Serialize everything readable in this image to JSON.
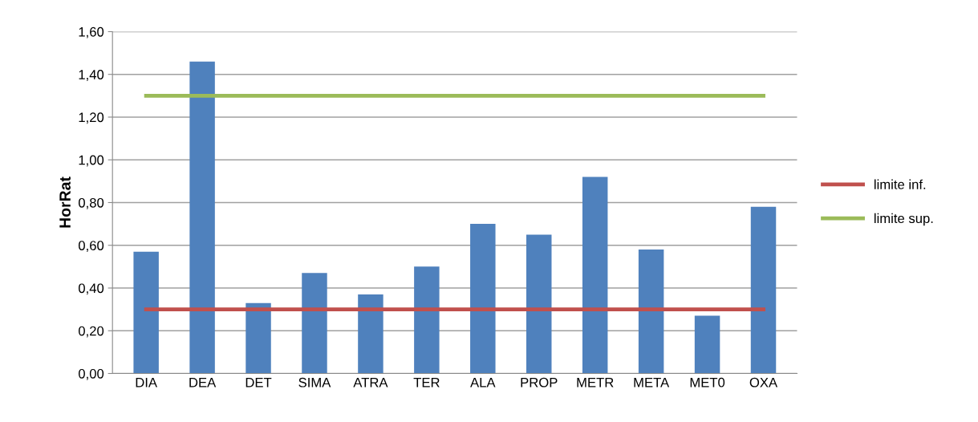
{
  "chart_data": {
    "type": "bar",
    "ylabel": "HorRat",
    "categories": [
      "DIA",
      "DEA",
      "DET",
      "SIMA",
      "ATRA",
      "TER",
      "ALA",
      "PROP",
      "METR",
      "META",
      "MET0",
      "OXA"
    ],
    "series": [
      {
        "color": "#4f81bd",
        "values": [
          0.57,
          1.46,
          0.33,
          0.47,
          0.37,
          0.5,
          0.7,
          0.65,
          0.92,
          0.58,
          0.27,
          0.78
        ]
      },
      {
        "type": "line",
        "name": "limite inf.",
        "color": "#c0504d",
        "values": [
          0.3,
          0.3,
          0.3,
          0.3,
          0.3,
          0.3,
          0.3,
          0.3,
          0.3,
          0.3,
          0.3,
          0.3
        ]
      },
      {
        "type": "line",
        "name": "limite sup.",
        "color": "#9bbb59",
        "values": [
          1.3,
          1.3,
          1.3,
          1.3,
          1.3,
          1.3,
          1.3,
          1.3,
          1.3,
          1.3,
          1.3,
          1.3
        ]
      }
    ],
    "ylim": [
      0,
      1.6
    ],
    "yticks": [
      {
        "value": 0,
        "label": "0,00"
      },
      {
        "value": 0.2,
        "label": "0,20"
      },
      {
        "value": 0.4,
        "label": "0,40"
      },
      {
        "value": 0.6,
        "label": "0,60"
      },
      {
        "value": 0.8,
        "label": "0,80"
      },
      {
        "value": 1.0,
        "label": "1,00"
      },
      {
        "value": 1.2,
        "label": "1,20"
      },
      {
        "value": 1.4,
        "label": "1,40"
      },
      {
        "value": 1.6,
        "label": "1,60"
      }
    ],
    "grid": "y",
    "legend": "right",
    "marker": "none",
    "line_style": "solid"
  }
}
